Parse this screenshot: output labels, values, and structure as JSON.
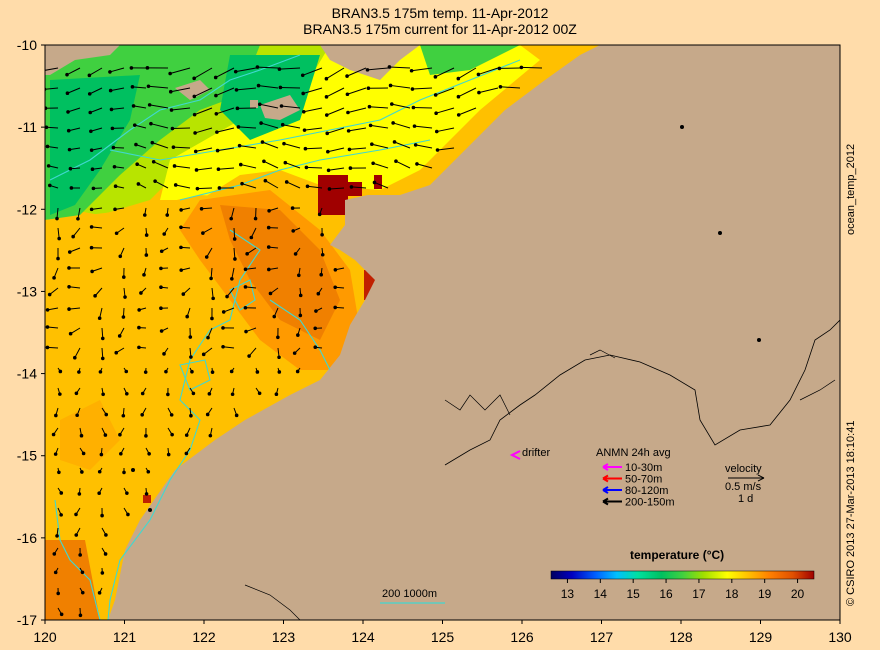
{
  "title": {
    "line1": "BRAN3.5 175m temp. 11-Apr-2012",
    "line2": "BRAN3.5 175m current for 11-Apr-2012 00Z"
  },
  "side_labels": {
    "product": "ocean_temp_2012",
    "credit": "© CSIRO 2013   27-Mar-2013 18:10:41"
  },
  "axes": {
    "x_ticks": [
      "120",
      "121",
      "122",
      "123",
      "124",
      "125",
      "126",
      "127",
      "128",
      "129",
      "130"
    ],
    "y_ticks": [
      "-10",
      "-11",
      "-12",
      "-13",
      "-14",
      "-15",
      "-16",
      "-17"
    ],
    "lon_range": [
      120,
      130
    ],
    "lat_range": [
      -17,
      -10
    ]
  },
  "colors": {
    "land": "#c6a98a",
    "contour": "#40d8d0",
    "background": "#ffdcaa"
  },
  "drifter": {
    "label": "drifter",
    "color": "#ff00ff"
  },
  "anmn_legend": {
    "title": "ANMN 24h avg",
    "items": [
      {
        "label": "10-30m",
        "color": "#ff00ff"
      },
      {
        "label": "50-70m",
        "color": "#ff0000"
      },
      {
        "label": "80-120m",
        "color": "#0000ff"
      },
      {
        "label": "200-150m",
        "color": "#000000"
      }
    ]
  },
  "velocity_legend": {
    "title": "velocity",
    "speed": "0.5 m/s",
    "duration": "1 d"
  },
  "depth_legend": {
    "label": "200  1000m"
  },
  "colorbar": {
    "title": "temperature (°C)",
    "ticks": [
      "13",
      "14",
      "15",
      "16",
      "17",
      "18",
      "19",
      "20"
    ],
    "range": [
      12.5,
      20.5
    ],
    "stops": [
      "#000060",
      "#0000c0",
      "#0060ff",
      "#00c0ff",
      "#00e0a0",
      "#00c060",
      "#40d040",
      "#a0e000",
      "#ffff00",
      "#ffc000",
      "#ff8000",
      "#e05000",
      "#a00000"
    ]
  }
}
